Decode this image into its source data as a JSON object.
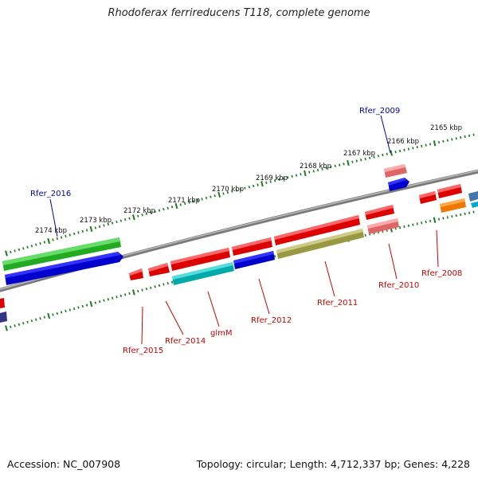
{
  "title": "Rhodoferax ferrireducens T118, complete genome",
  "footer": {
    "accession": "Accession: NC_007908",
    "summary": "Topology: circular; Length: 4,712,337 bp; Genes: 4,228"
  },
  "colors": {
    "backbone": "#8a8a8a",
    "ticks": "#1e7a1e",
    "label_red": "#cc0000",
    "label_blue": "#0000bb"
  },
  "kbp_labels": [
    "2174 kbp",
    "2173 kbp",
    "2172 kbp",
    "2171 kbp",
    "2170 kbp",
    "2169 kbp",
    "2168 kbp",
    "2167 kbp",
    "2166 kbp",
    "2165 kbp"
  ],
  "genes": [
    {
      "name": "Rfer_2016",
      "color": "#0000bb"
    },
    {
      "name": "Rfer_2009",
      "color": "#0000bb"
    },
    {
      "name": "Rfer_2015",
      "color": "#cc0000"
    },
    {
      "name": "Rfer_2014",
      "color": "#cc0000"
    },
    {
      "name": "glmM",
      "color": "#cc0000"
    },
    {
      "name": "Rfer_2012",
      "color": "#cc0000"
    },
    {
      "name": "Rfer_2011",
      "color": "#cc0000"
    },
    {
      "name": "Rfer_2010",
      "color": "#cc0000"
    },
    {
      "name": "Rfer_2008",
      "color": "#cc0000"
    }
  ]
}
